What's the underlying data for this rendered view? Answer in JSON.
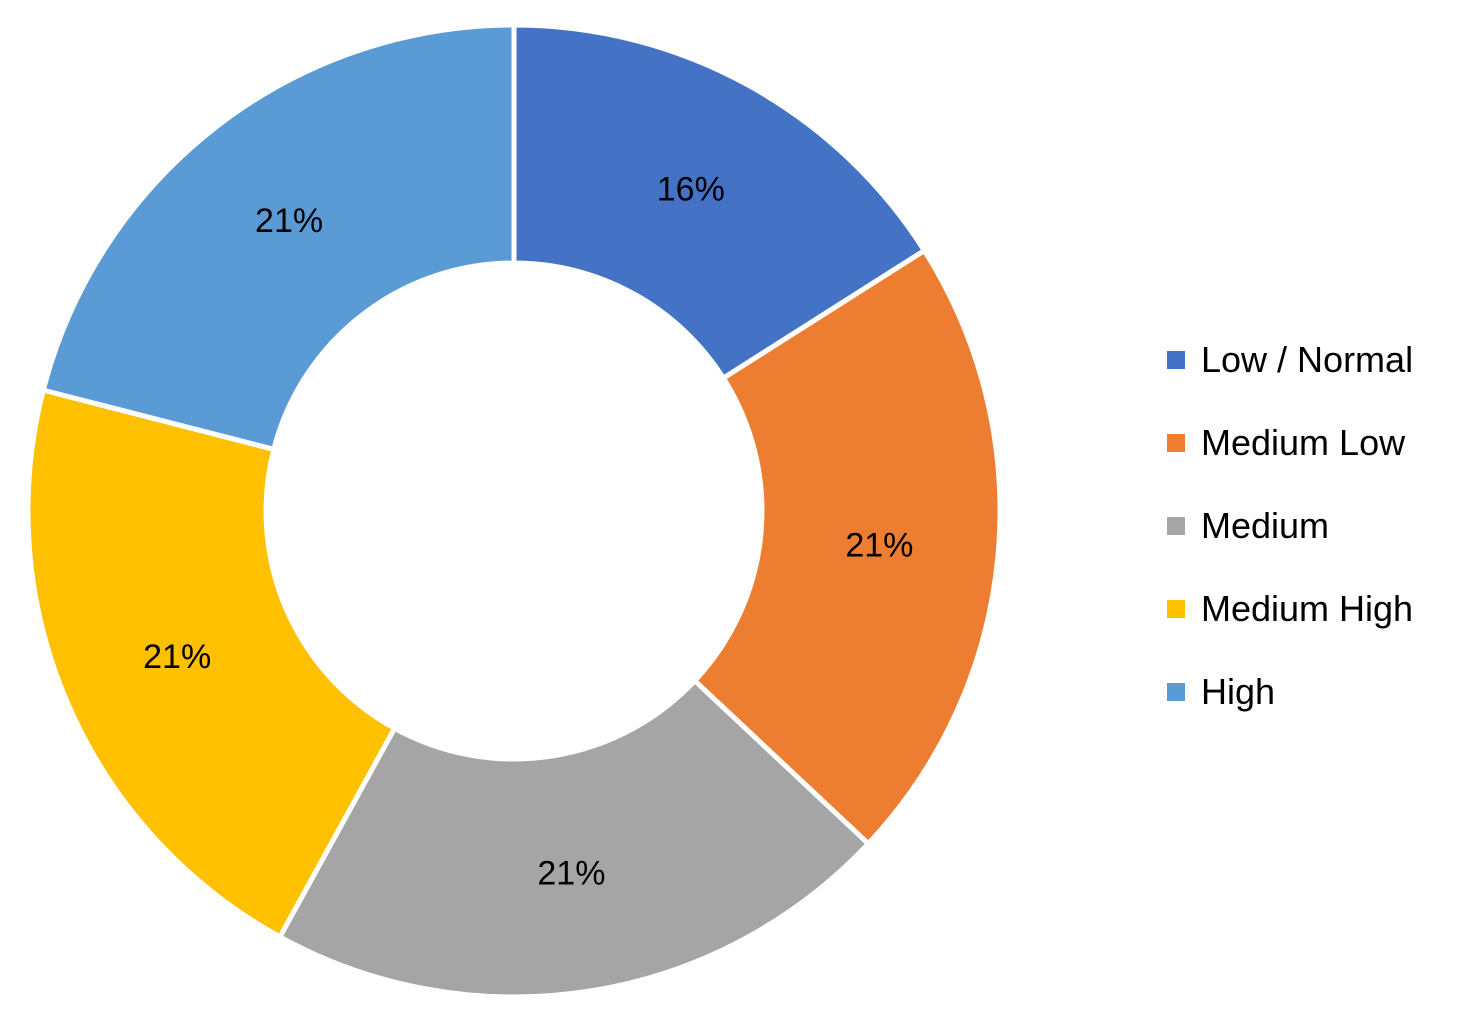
{
  "chart_data": {
    "type": "pie",
    "donut": true,
    "categories": [
      "Low / Normal",
      "Medium Low",
      "Medium",
      "Medium High",
      "High"
    ],
    "values": [
      16,
      21,
      21,
      21,
      21
    ],
    "data_labels": [
      "16%",
      "21%",
      "21%",
      "21%",
      "21%"
    ],
    "colors": [
      "#4472C4",
      "#ED7D31",
      "#A5A5A5",
      "#FFC000",
      "#5B9BD5"
    ],
    "legend_position": "right"
  }
}
